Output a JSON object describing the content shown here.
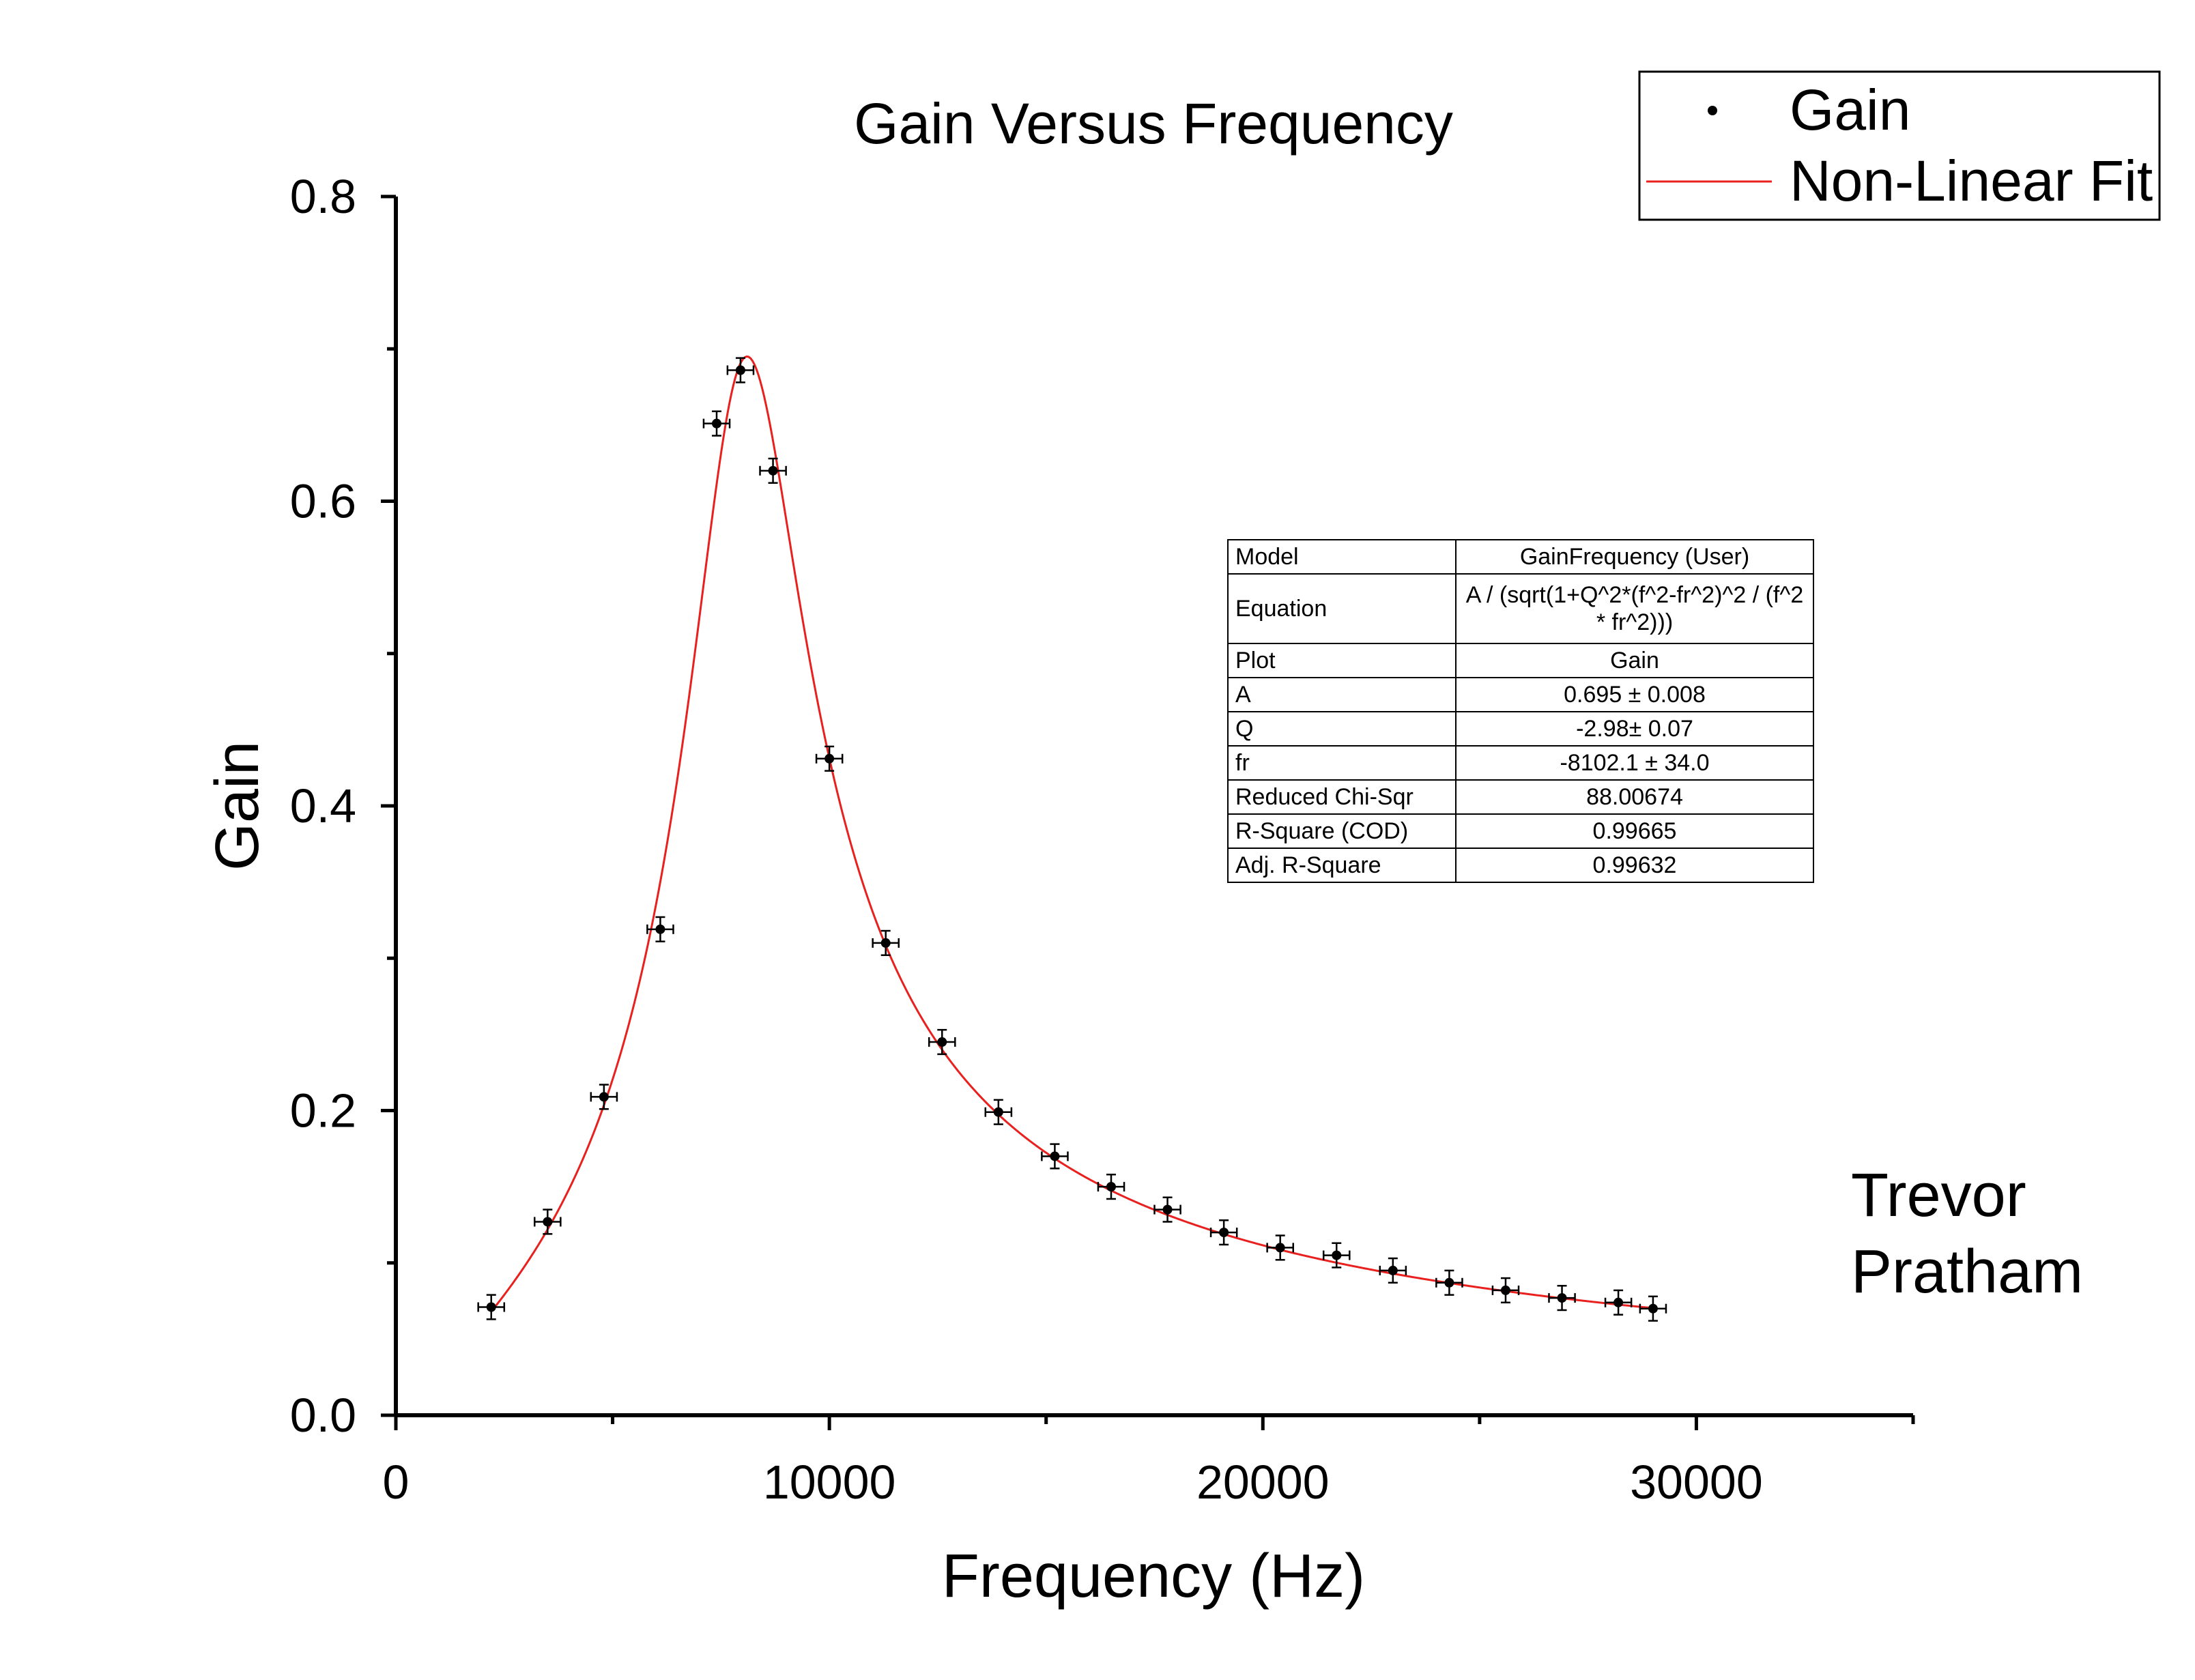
{
  "chart_data": {
    "type": "scatter",
    "title": "Gain Versus Frequency",
    "xlabel": "Frequency (Hz)",
    "ylabel": "Gain",
    "xlim": [
      0,
      35000
    ],
    "ylim": [
      0,
      0.8
    ],
    "x_ticks": [
      0,
      10000,
      20000,
      30000
    ],
    "x_tick_labels": [
      "0",
      "10000",
      "20000",
      "30000"
    ],
    "y_ticks": [
      0,
      0.2,
      0.4,
      0.6,
      0.8
    ],
    "y_tick_labels": [
      "0.0",
      "0.2",
      "0.4",
      "0.6",
      "0.8"
    ],
    "legend_position": "top-right",
    "series": [
      {
        "name": "Gain",
        "kind": "points-with-error-bars",
        "color": "#000000",
        "x": [
          2200,
          3500,
          4800,
          6100,
          7400,
          7950,
          8700,
          10000,
          11300,
          12600,
          13900,
          15200,
          16500,
          17800,
          19100,
          20400,
          21700,
          23000,
          24300,
          25600,
          26900,
          28200,
          29000
        ],
        "y": [
          0.071,
          0.127,
          0.209,
          0.319,
          0.651,
          0.686,
          0.62,
          0.431,
          0.31,
          0.245,
          0.199,
          0.17,
          0.15,
          0.135,
          0.12,
          0.11,
          0.105,
          0.095,
          0.087,
          0.082,
          0.077,
          0.074,
          0.07
        ],
        "x_error": 300,
        "y_error": 0.008
      },
      {
        "name": "Non-Linear Fit",
        "kind": "line",
        "color": "#e8201e",
        "model": {
          "A": 0.695,
          "Q": -2.98,
          "fr": -8102.1
        },
        "x_range": [
          2200,
          29000
        ]
      }
    ],
    "annotations": [
      "Trevor",
      "Pratham"
    ],
    "fit_table": [
      {
        "key": "Model",
        "value": "GainFrequency (User)"
      },
      {
        "key": "Equation",
        "value": "A / (sqrt(1+Q^2*(f^2-fr^2)^2 / (f^2 * fr^2)))"
      },
      {
        "key": "Plot",
        "value": "Gain"
      },
      {
        "key": "A",
        "value": "0.695 ± 0.008"
      },
      {
        "key": "Q",
        "value": "-2.98± 0.07"
      },
      {
        "key": "fr",
        "value": "-8102.1 ± 34.0"
      },
      {
        "key": "Reduced Chi-Sqr",
        "value": "88.00674"
      },
      {
        "key": "R-Square (COD)",
        "value": "0.99665"
      },
      {
        "key": "Adj. R-Square",
        "value": "0.99632"
      }
    ]
  }
}
